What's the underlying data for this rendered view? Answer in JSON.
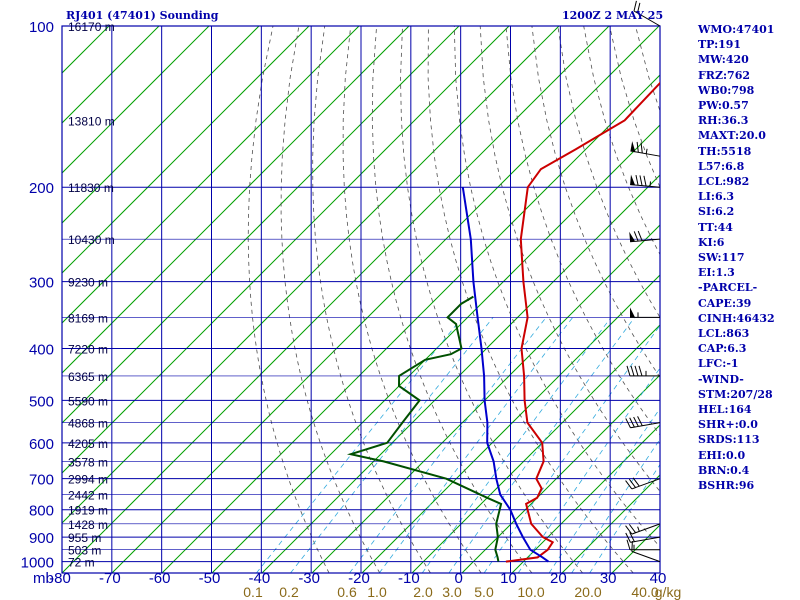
{
  "header": {
    "station": "RJ401 (47401) Sounding",
    "time": "1200Z  2 MAY 25"
  },
  "indices": [
    "WMO:47401",
    "TP:191",
    "MW:420",
    "FRZ:762",
    "WB0:798",
    "PW:0.57",
    "RH:36.3",
    "MAXT:20.0",
    "TH:5518",
    "L57:6.8",
    "LCL:982",
    "LI:6.3",
    "SI:6.2",
    "TT:44",
    "KI:6",
    "SW:117",
    "EI:1.3",
    "-PARCEL-",
    "CAPE:39",
    "CINH:46432",
    "LCL:863",
    "CAP:6.3",
    "LFC:-1",
    "-WIND-",
    "STM:207/28",
    "HEL:164",
    "SHR+:0.0",
    "SRDS:113",
    "EHI:0.0",
    "BRN:0.4",
    "BSHR:96"
  ],
  "colors": {
    "grid": "#0000aa",
    "isotherm": "#00a000",
    "dry_adiabat": "#505050",
    "mixing_ratio": "#33aadd",
    "temperature": "#cc0000",
    "dewpoint": "#005000",
    "parcel": "#0000cc",
    "wind": "#000000"
  },
  "chart_data": {
    "type": "line",
    "title": "RJ401 (47401) Sounding",
    "xlabel": "",
    "ylabel": "mb",
    "y_unit_label": "mb",
    "y_scale": "log-pressure",
    "y_range": [
      1050,
      100
    ],
    "x_range": [
      -80,
      40
    ],
    "x_ticks": [
      "-80",
      "-70",
      "-60",
      "-50",
      "-40",
      "-30",
      "-20",
      "-10",
      "0",
      "10",
      "20",
      "30",
      "40"
    ],
    "pressure_ticks": [
      "100",
      "200",
      "300",
      "400",
      "500",
      "600",
      "700",
      "800",
      "900",
      "1000"
    ],
    "mixing_ratio_labels": [
      "0.1",
      "0.2",
      "0.6",
      "1.0",
      "2.0",
      "3.0",
      "5.0",
      "10.0",
      "20.0",
      "40.0",
      "g/kg"
    ],
    "height_labels": [
      {
        "p": 100,
        "label": "16170 m"
      },
      {
        "p": 150,
        "label": "13810 m"
      },
      {
        "p": 200,
        "label": "11830 m"
      },
      {
        "p": 250,
        "label": "10430 m"
      },
      {
        "p": 300,
        "label": "9230 m"
      },
      {
        "p": 350,
        "label": "8169 m"
      },
      {
        "p": 400,
        "label": "7220 m"
      },
      {
        "p": 450,
        "label": "6365 m"
      },
      {
        "p": 500,
        "label": "5590 m"
      },
      {
        "p": 550,
        "label": "4868 m"
      },
      {
        "p": 600,
        "label": "4205 m"
      },
      {
        "p": 650,
        "label": "3578 m"
      },
      {
        "p": 700,
        "label": "2994 m"
      },
      {
        "p": 750,
        "label": "2442 m"
      },
      {
        "p": 800,
        "label": "1919 m"
      },
      {
        "p": 850,
        "label": "1428 m"
      },
      {
        "p": 900,
        "label": "955 m"
      },
      {
        "p": 950,
        "label": "503 m"
      },
      {
        "p": 1000,
        "label": "72 m"
      }
    ],
    "series": [
      {
        "key": "temperature",
        "points": [
          [
            1000,
            6.5
          ],
          [
            982,
            12
          ],
          [
            950,
            12.5
          ],
          [
            920,
            12
          ],
          [
            900,
            9
          ],
          [
            850,
            4
          ],
          [
            780,
            -1
          ],
          [
            760,
            0
          ],
          [
            730,
            -1
          ],
          [
            700,
            -4
          ],
          [
            650,
            -6
          ],
          [
            600,
            -10
          ],
          [
            550,
            -17
          ],
          [
            500,
            -22
          ],
          [
            450,
            -27
          ],
          [
            400,
            -33
          ],
          [
            350,
            -38
          ],
          [
            300,
            -46
          ],
          [
            250,
            -55
          ],
          [
            200,
            -64
          ],
          [
            185,
            -65
          ],
          [
            170,
            -62
          ],
          [
            150,
            -58
          ],
          [
            100,
            -59
          ]
        ]
      },
      {
        "key": "dewpoint",
        "points": [
          [
            1000,
            5
          ],
          [
            982,
            4
          ],
          [
            950,
            2
          ],
          [
            900,
            0
          ],
          [
            850,
            -3
          ],
          [
            780,
            -6
          ],
          [
            760,
            -10
          ],
          [
            700,
            -22
          ],
          [
            650,
            -38
          ],
          [
            630,
            -46
          ],
          [
            600,
            -41
          ],
          [
            550,
            -42
          ],
          [
            500,
            -43
          ],
          [
            470,
            -50
          ],
          [
            450,
            -52
          ],
          [
            420,
            -50
          ],
          [
            410,
            -46
          ],
          [
            400,
            -45
          ],
          [
            360,
            -51
          ],
          [
            350,
            -54
          ],
          [
            330,
            -54
          ],
          [
            320,
            -53
          ]
        ]
      },
      {
        "key": "parcel",
        "points": [
          [
            1000,
            15
          ],
          [
            982,
            13
          ],
          [
            950,
            9
          ],
          [
            900,
            5
          ],
          [
            850,
            1
          ],
          [
            800,
            -3
          ],
          [
            750,
            -8
          ],
          [
            700,
            -12
          ],
          [
            650,
            -16
          ],
          [
            600,
            -21
          ],
          [
            550,
            -25
          ],
          [
            500,
            -30
          ],
          [
            450,
            -35
          ],
          [
            400,
            -41
          ],
          [
            350,
            -48
          ],
          [
            300,
            -56
          ],
          [
            250,
            -65
          ],
          [
            200,
            -77
          ]
        ]
      }
    ],
    "wind_barbs": [
      {
        "p": 1000,
        "dir": 290,
        "spd": 10
      },
      {
        "p": 950,
        "dir": 270,
        "spd": 15
      },
      {
        "p": 900,
        "dir": 260,
        "spd": 20
      },
      {
        "p": 850,
        "dir": 250,
        "spd": 25
      },
      {
        "p": 700,
        "dir": 250,
        "spd": 30
      },
      {
        "p": 550,
        "dir": 260,
        "spd": 40
      },
      {
        "p": 450,
        "dir": 270,
        "spd": 45
      },
      {
        "p": 350,
        "dir": 270,
        "spd": 55
      },
      {
        "p": 250,
        "dir": 265,
        "spd": 70
      },
      {
        "p": 200,
        "dir": 275,
        "spd": 85
      },
      {
        "p": 175,
        "dir": 280,
        "spd": 75
      },
      {
        "p": 100,
        "dir": 300,
        "spd": 20
      }
    ],
    "grid": true
  }
}
